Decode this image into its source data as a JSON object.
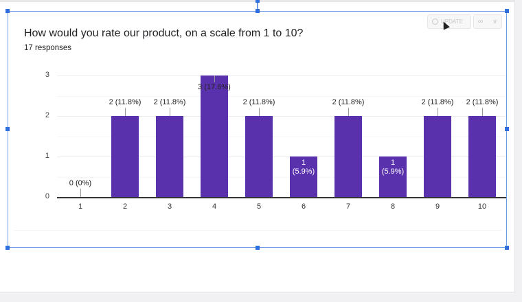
{
  "card": {
    "title": "How would you rate our product, on a scale from 1 to 10?",
    "subtitle": "17 responses",
    "update_button_label": "UPDATE",
    "link_button_icon": "link-icon",
    "dropdown_icon": "chevron-down-icon"
  },
  "colors": {
    "bar": "#5a31ad",
    "selection": "#6f9ce6",
    "handle": "#2f6fde"
  },
  "chart_data": {
    "type": "bar",
    "title": "How would you rate our product, on a scale from 1 to 10?",
    "subtitle": "17 responses",
    "categories": [
      "1",
      "2",
      "3",
      "4",
      "5",
      "6",
      "7",
      "8",
      "9",
      "10"
    ],
    "values": [
      0,
      2,
      2,
      3,
      2,
      1,
      2,
      1,
      2,
      2
    ],
    "data_labels": [
      "0 (0%)",
      "2 (11.8%)",
      "2 (11.8%)",
      "3 (17.6%)",
      "2 (11.8%)",
      "1 (5.9%)",
      "2 (11.8%)",
      "1 (5.9%)",
      "2 (11.8%)",
      "2 (11.8%)"
    ],
    "xlabel": "",
    "ylabel": "",
    "ylim": [
      0,
      3
    ],
    "yticks": [
      "0",
      "1",
      "2",
      "3"
    ],
    "grid": true,
    "legend": "none"
  }
}
